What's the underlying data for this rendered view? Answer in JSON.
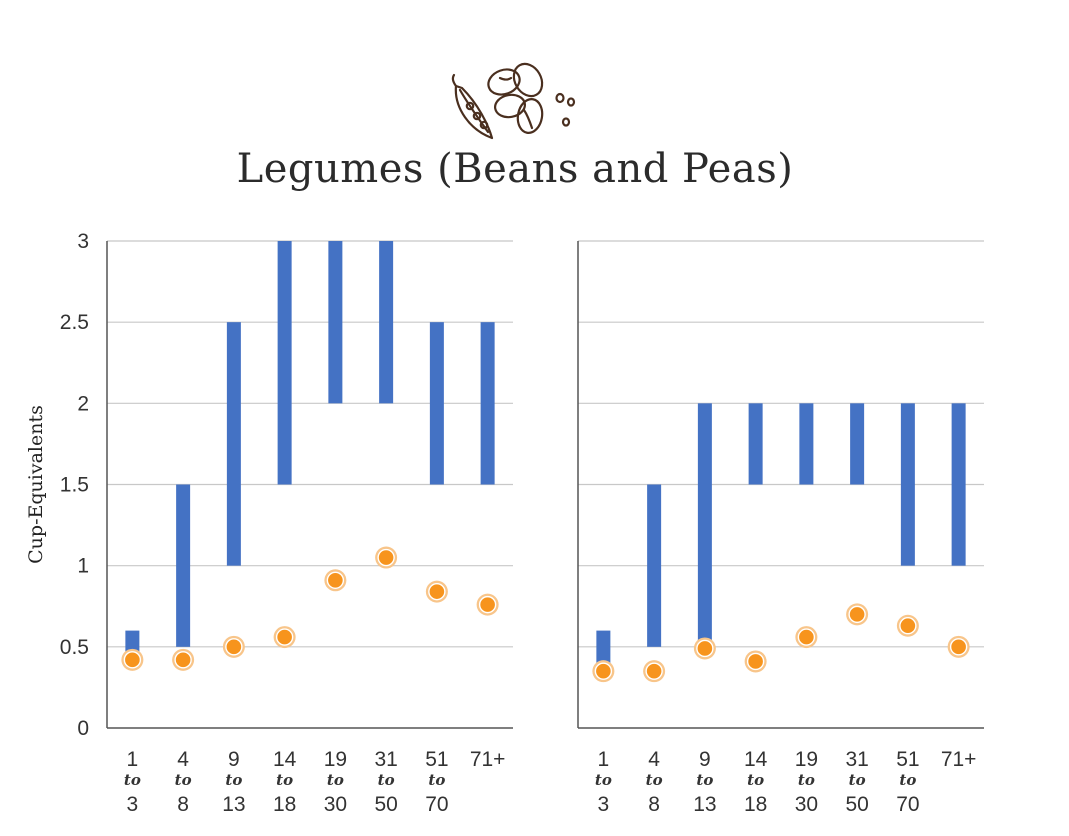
{
  "title": "Legumes (Beans and Peas)",
  "icon": "legume-icon",
  "colors": {
    "range_bar": "#4472c4",
    "intake_dot": "#f7941d",
    "intake_dot_ring": "#f8c58a",
    "gridline": "#c8c8c8",
    "axis": "#555555"
  },
  "chart_data": [
    {
      "type": "range-bar-with-dots",
      "title": "",
      "ylabel": "Cup-Equivalents",
      "ylim": [
        0,
        3
      ],
      "yticks": [
        "0",
        "0.5",
        "1",
        "1.5",
        "2",
        "2.5",
        "3"
      ],
      "grid": true,
      "categories": [
        {
          "from": "1",
          "to_label": "to",
          "to": "3"
        },
        {
          "from": "4",
          "to_label": "to",
          "to": "8"
        },
        {
          "from": "9",
          "to_label": "to",
          "to": "13"
        },
        {
          "from": "14",
          "to_label": "to",
          "to": "18"
        },
        {
          "from": "19",
          "to_label": "to",
          "to": "30"
        },
        {
          "from": "31",
          "to_label": "to",
          "to": "50"
        },
        {
          "from": "51",
          "to_label": "to",
          "to": "70"
        },
        {
          "from": "71+",
          "to_label": "",
          "to": ""
        }
      ],
      "ranges": [
        [
          0.42,
          0.6
        ],
        [
          0.5,
          1.5
        ],
        [
          1.0,
          2.5
        ],
        [
          1.5,
          3.0
        ],
        [
          2.0,
          3.0
        ],
        [
          2.0,
          3.0
        ],
        [
          1.5,
          2.5
        ],
        [
          1.5,
          2.5
        ]
      ],
      "dots": [
        0.42,
        0.42,
        0.5,
        0.56,
        0.91,
        1.05,
        0.84,
        0.76
      ]
    },
    {
      "type": "range-bar-with-dots",
      "title": "",
      "ylabel": "",
      "ylim": [
        0,
        3
      ],
      "yticks": [],
      "grid": true,
      "categories": [
        {
          "from": "1",
          "to_label": "to",
          "to": "3"
        },
        {
          "from": "4",
          "to_label": "to",
          "to": "8"
        },
        {
          "from": "9",
          "to_label": "to",
          "to": "13"
        },
        {
          "from": "14",
          "to_label": "to",
          "to": "18"
        },
        {
          "from": "19",
          "to_label": "to",
          "to": "30"
        },
        {
          "from": "31",
          "to_label": "to",
          "to": "50"
        },
        {
          "from": "51",
          "to_label": "to",
          "to": "70"
        },
        {
          "from": "71+",
          "to_label": "",
          "to": ""
        }
      ],
      "ranges": [
        [
          0.35,
          0.6
        ],
        [
          0.5,
          1.5
        ],
        [
          0.49,
          2.0
        ],
        [
          1.5,
          2.0
        ],
        [
          1.5,
          2.0
        ],
        [
          1.5,
          2.0
        ],
        [
          1.0,
          2.0
        ],
        [
          1.0,
          2.0
        ]
      ],
      "dots": [
        0.35,
        0.35,
        0.49,
        0.41,
        0.56,
        0.7,
        0.63,
        0.5
      ]
    }
  ]
}
